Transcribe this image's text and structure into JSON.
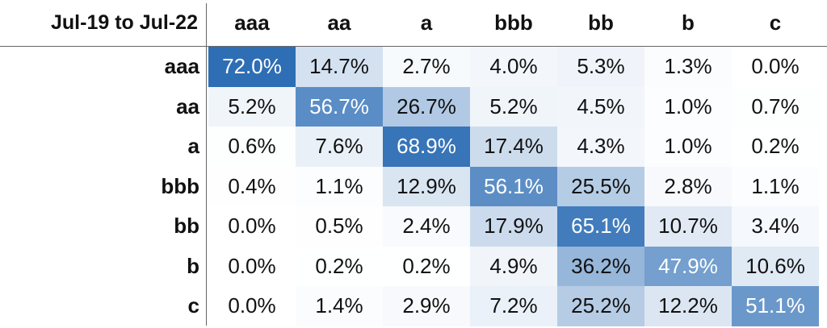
{
  "table": {
    "corner": "Jul-19 to Jul-22",
    "columns": [
      "aaa",
      "aa",
      "a",
      "bbb",
      "bb",
      "b",
      "c"
    ],
    "rows": [
      {
        "label": "aaa",
        "cells": [
          "72.0%",
          "14.7%",
          "2.7%",
          "4.0%",
          "5.3%",
          "1.3%",
          "0.0%"
        ]
      },
      {
        "label": "aa",
        "cells": [
          "5.2%",
          "56.7%",
          "26.7%",
          "5.2%",
          "4.5%",
          "1.0%",
          "0.7%"
        ]
      },
      {
        "label": "a",
        "cells": [
          "0.6%",
          "7.6%",
          "68.9%",
          "17.4%",
          "4.3%",
          "1.0%",
          "0.2%"
        ]
      },
      {
        "label": "bbb",
        "cells": [
          "0.4%",
          "1.1%",
          "12.9%",
          "56.1%",
          "25.5%",
          "2.8%",
          "1.1%"
        ]
      },
      {
        "label": "bb",
        "cells": [
          "0.0%",
          "0.5%",
          "2.4%",
          "17.9%",
          "65.1%",
          "10.7%",
          "3.4%"
        ]
      },
      {
        "label": "b",
        "cells": [
          "0.0%",
          "0.2%",
          "0.2%",
          "4.9%",
          "36.2%",
          "47.9%",
          "10.6%"
        ]
      },
      {
        "label": "c",
        "cells": [
          "0.0%",
          "1.4%",
          "2.9%",
          "7.2%",
          "25.2%",
          "12.2%",
          "51.1%"
        ]
      }
    ]
  }
}
